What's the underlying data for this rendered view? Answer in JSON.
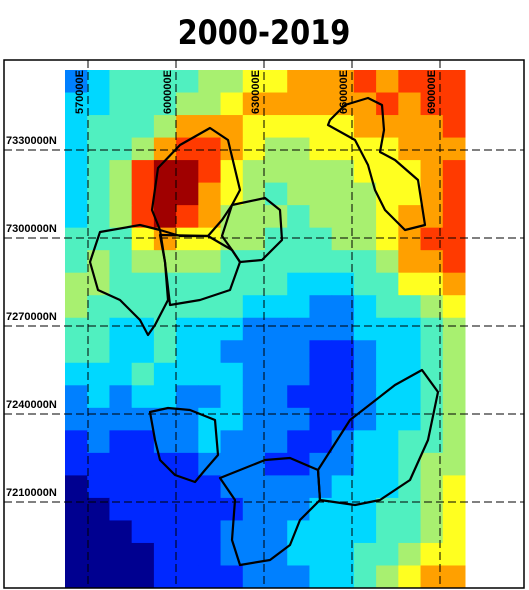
{
  "map": {
    "title": "2000-2019",
    "x_labels": [
      "570000E",
      "600000E",
      "630000E",
      "660000E",
      "690000E"
    ],
    "y_labels": [
      "7330000N",
      "7300000N",
      "7270000N",
      "7240000N",
      "7210000N"
    ]
  }
}
